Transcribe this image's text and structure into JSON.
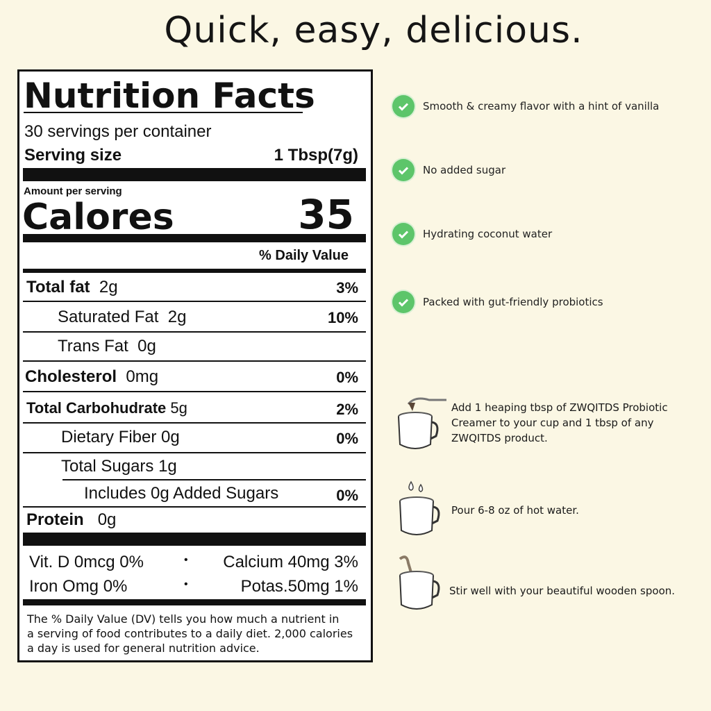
{
  "headline": "Quick, easy, delicious.",
  "nutrition": {
    "title": "Nutrition Facts",
    "servings": "30 servings per container",
    "serving_size_label": "Serving size",
    "serving_size_value": "1 Tbsp(7g)",
    "amount_per_serving": "Amount per serving",
    "calories_label": "Calores",
    "calories_value": "35",
    "daily_value_header": "% Daily Value",
    "rows": [
      {
        "label": "Total fat",
        "amount": "2g",
        "dv": "3%"
      },
      {
        "label": "Saturated Fat",
        "amount": "2g",
        "dv": "10%"
      },
      {
        "label": "Trans Fat",
        "amount": "0g",
        "dv": ""
      },
      {
        "label": "Cholesterol",
        "amount": "0mg",
        "dv": "0%"
      },
      {
        "label": "Total Carbohudrate",
        "amount": "5g",
        "dv": "2%"
      },
      {
        "label": "Dietary Fiber",
        "amount": "0g",
        "dv": "0%"
      },
      {
        "label": "Total Sugars",
        "amount": "1g",
        "dv": ""
      },
      {
        "label": "Includes 0g Added Sugars",
        "amount": "",
        "dv": "0%"
      },
      {
        "label": "Protein",
        "amount": "0g",
        "dv": ""
      }
    ],
    "vitamins": [
      {
        "left": "Vit. D 0mcg 0%",
        "right": "Calcium 40mg 3%"
      },
      {
        "left": "Iron Omg 0%",
        "right": "Potas.50mg 1%"
      }
    ],
    "separator": "•",
    "footnote": [
      "The % Daily Value (DV) tells you how much a nutrient in",
      "a serving of food contributes to a daily diet. 2,000 calories",
      "a day is used for general nutrition advice."
    ]
  },
  "features": [
    "Smooth & creamy flavor with a hint of vanilla",
    "No added sugar",
    "Hydrating coconut water",
    "Packed with gut-friendly probiotics"
  ],
  "steps": [
    [
      "Add 1 heaping tbsp of ZWQITDS Probiotic",
      "Creamer to your cup and 1 tbsp of any",
      "ZWQITDS product."
    ],
    [
      "Pour 6-8 oz of hot water."
    ],
    [
      "Stir well with your beautiful wooden spoon."
    ]
  ],
  "colors": {
    "background": "#fbf7e4",
    "check": "#5dc56a"
  }
}
